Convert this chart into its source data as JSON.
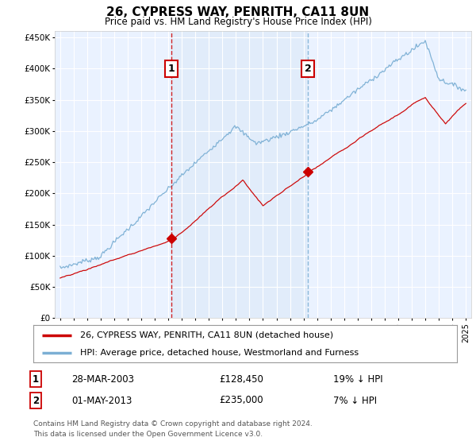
{
  "title": "26, CYPRESS WAY, PENRITH, CA11 8UN",
  "subtitle": "Price paid vs. HM Land Registry's House Price Index (HPI)",
  "ylim": [
    0,
    460000
  ],
  "yticks": [
    0,
    50000,
    100000,
    150000,
    200000,
    250000,
    300000,
    350000,
    400000,
    450000
  ],
  "background_color": "#ffffff",
  "plot_bg_color": "#dce8f8",
  "plot_bg_color2": "#eaf2ff",
  "grid_color": "#ffffff",
  "purchase1": {
    "date_num": 2003.23,
    "price": 128450,
    "label": "1",
    "date_str": "28-MAR-2003",
    "hpi_pct": "19% ↓ HPI"
  },
  "purchase2": {
    "date_num": 2013.33,
    "price": 235000,
    "label": "2",
    "date_str": "01-MAY-2013",
    "hpi_pct": "7% ↓ HPI"
  },
  "legend_property": "26, CYPRESS WAY, PENRITH, CA11 8UN (detached house)",
  "legend_hpi": "HPI: Average price, detached house, Westmorland and Furness",
  "footer1": "Contains HM Land Registry data © Crown copyright and database right 2024.",
  "footer2": "This data is licensed under the Open Government Licence v3.0.",
  "property_color": "#cc0000",
  "hpi_color": "#7bafd4",
  "vline1_color": "#cc0000",
  "vline2_color": "#7bafd4",
  "marker_box_color": "#cc0000",
  "shade_color": "#dce8f8",
  "xstart": 1995,
  "xend": 2025
}
